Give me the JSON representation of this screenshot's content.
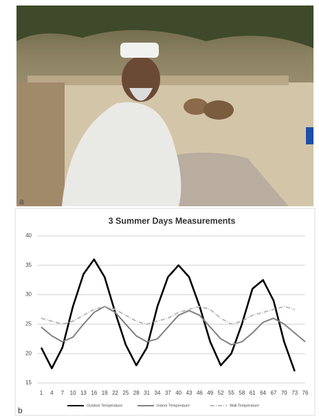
{
  "panel_labels": [
    "a",
    "b"
  ],
  "chart_data": {
    "type": "line",
    "title": "3 Summer Days Measurements",
    "x": [
      1,
      4,
      7,
      10,
      13,
      16,
      19,
      22,
      25,
      28,
      31,
      34,
      37,
      40,
      43,
      46,
      49,
      52,
      55,
      58,
      61,
      64,
      67,
      70,
      73,
      76
    ],
    "xlim": [
      1,
      76
    ],
    "xticks": [
      1,
      4,
      7,
      10,
      13,
      16,
      19,
      22,
      25,
      28,
      31,
      34,
      37,
      40,
      43,
      46,
      49,
      52,
      55,
      58,
      61,
      64,
      67,
      70,
      73,
      76
    ],
    "ylim": [
      15,
      40
    ],
    "yticks": [
      15,
      20,
      25,
      30,
      35,
      40
    ],
    "grid": true,
    "series": [
      {
        "name": "Outdoor Temperature",
        "color": "#000000",
        "style": "solid",
        "values": [
          21,
          17.5,
          21,
          28,
          33.5,
          36,
          33,
          27,
          21.5,
          18,
          21,
          28,
          33,
          35,
          33,
          28,
          22,
          18,
          20,
          25,
          31,
          32.5,
          29,
          22,
          17,
          null
        ]
      },
      {
        "name": "Indoor Temperature",
        "color": "#808080",
        "style": "solid",
        "values": [
          24.5,
          23,
          22,
          22.8,
          25,
          27,
          28,
          27,
          25,
          23,
          22,
          22.5,
          24.5,
          26.5,
          27.3,
          26.5,
          24.5,
          22.5,
          21.5,
          22,
          23.5,
          25.3,
          26,
          25,
          23.5,
          22
        ]
      },
      {
        "name": "Wall Temperature",
        "color": "#b8b8b8",
        "style": "dashdot",
        "values": [
          26,
          25.5,
          25,
          25.5,
          26.5,
          27.5,
          28,
          27.5,
          26.5,
          25.5,
          25,
          25.5,
          26,
          27,
          27.5,
          28,
          27.5,
          26,
          25,
          25.5,
          26.5,
          27,
          27.5,
          28,
          27.5,
          null
        ]
      }
    ]
  }
}
